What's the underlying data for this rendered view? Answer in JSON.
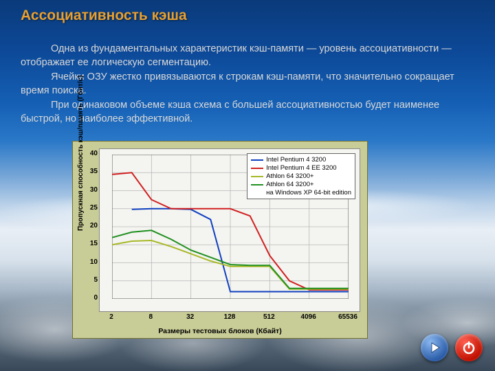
{
  "title": "Ассоциативность кэша",
  "paragraphs": [
    "Одна из фундаментальных характеристик кэш-памяти — уровень ассоциативности — отображает ее логическую сегментацию.",
    "Ячейки ОЗУ жестко привязываются к строкам кэш-памяти, что значительно сокращает время поиска.",
    "При одинаковом объеме кэша схема с большей ассоциативностью будет наименее быстрой, но наиболее эффективной."
  ],
  "chart": {
    "type": "line",
    "ylabel": "Пропускная способность кэш/память (Гбит/с)",
    "xlabel": "Размеры тестовых блоков (Кбайт)",
    "xticks": [
      "2",
      "8",
      "32",
      "128",
      "512",
      "4096",
      "65536"
    ],
    "yticks": [
      0,
      5,
      10,
      15,
      20,
      25,
      30,
      35,
      40
    ],
    "ylim": [
      0,
      40
    ],
    "grid_color": "#b8b8b8",
    "background_color": "#f4f4f0",
    "frame_color": "#c8cc96",
    "series": [
      {
        "name": "Intel Pentium 4 3200",
        "color": "#1040c0",
        "width": 2,
        "y": [
          null,
          24.8,
          25.0,
          25.0,
          24.8,
          22.0,
          2.0,
          2.0,
          2.0,
          2.0,
          2.0,
          2.0,
          2.0
        ]
      },
      {
        "name": "Intel Pentium 4 EE 3200",
        "color": "#d02020",
        "width": 2,
        "y": [
          34.5,
          35.0,
          27.5,
          25.0,
          25.0,
          25.0,
          25.0,
          23.0,
          12.0,
          5.0,
          2.5,
          2.5,
          2.5
        ]
      },
      {
        "name": "Athlon 64 3200+",
        "color": "#a8b828",
        "width": 2,
        "y": [
          15.0,
          16.0,
          16.2,
          14.5,
          12.5,
          10.5,
          9.0,
          9.0,
          9.0,
          2.7,
          2.7,
          2.7,
          2.7
        ]
      },
      {
        "name": "Athlon 64 3200+\nна Windows XP 64-bit edition",
        "color": "#209020",
        "width": 2,
        "y": [
          17.0,
          18.5,
          19.0,
          16.5,
          13.5,
          11.5,
          9.5,
          9.3,
          9.3,
          2.9,
          2.9,
          2.9,
          2.9
        ]
      }
    ],
    "n_points": 13
  },
  "nav": {
    "play_icon": "play",
    "power_icon": "power"
  }
}
